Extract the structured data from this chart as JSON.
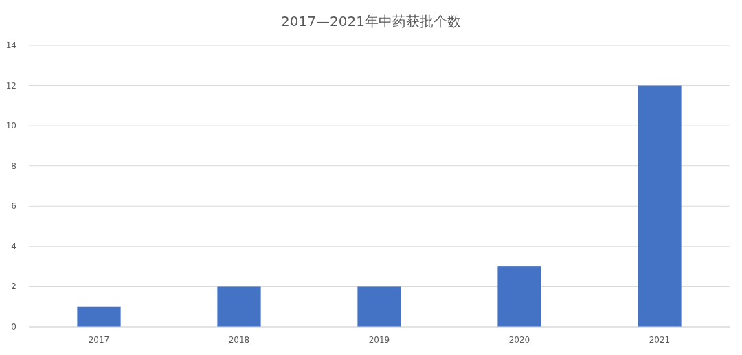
{
  "chart_data": {
    "type": "bar",
    "title": "2017—2021年中药获批个数",
    "categories": [
      "2017",
      "2018",
      "2019",
      "2020",
      "2021"
    ],
    "values": [
      1,
      2,
      2,
      3,
      12
    ],
    "color": "#4472c4",
    "ylim": [
      0,
      14
    ],
    "yticks": [
      0,
      2,
      4,
      6,
      8,
      10,
      12,
      14
    ],
    "grid": "y"
  }
}
